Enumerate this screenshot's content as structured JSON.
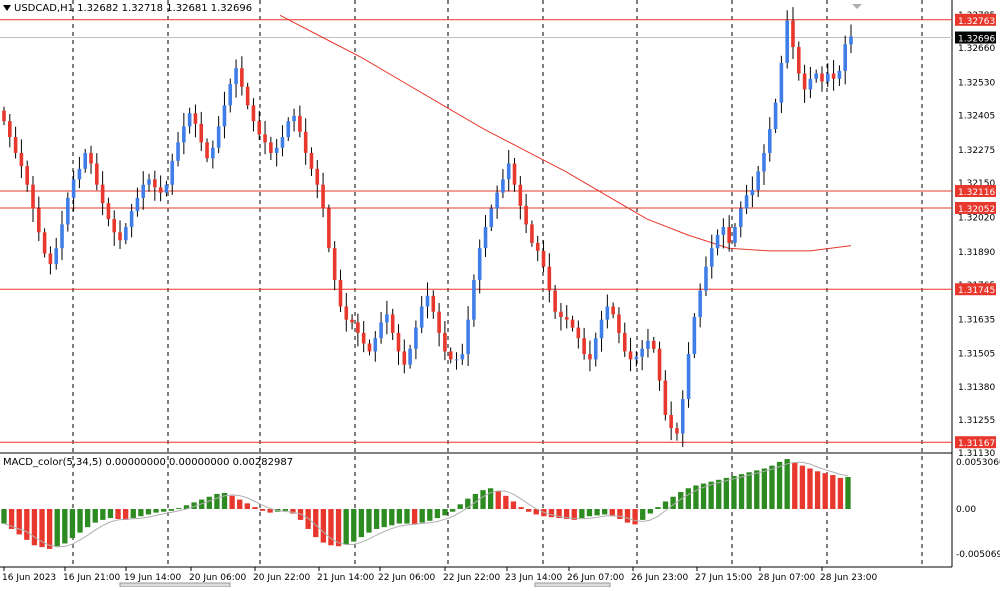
{
  "header": {
    "symbol": "USDCAD,H1",
    "ohlc": "1.32682 1.32718 1.32681 1.32696"
  },
  "macd": {
    "title": "MACD_color(5,34,5) 0.00000000 0.00000000 0.00282987",
    "axis_labels": [
      "0.0053060",
      "0.00",
      "-0.0050693"
    ]
  },
  "colors": {
    "bull": "#3f7ee8",
    "bear": "#e8372c",
    "level_line": "#e8372c",
    "ma_line": "#e8372c",
    "current_price_tag": "#000000",
    "macd_up": "#2e8b22",
    "macd_down": "#e8372c",
    "macd_signal": "#b0b0b0",
    "grid_vertical": "#000000"
  },
  "chart_data": [
    {
      "type": "candlestick",
      "title": "USDCAD,H1",
      "ylim": [
        1.3113,
        1.328
      ],
      "y_ticks": [
        "1.32785",
        "1.32660",
        "1.32530",
        "1.32405",
        "1.32275",
        "1.32150",
        "1.32020",
        "1.31890",
        "1.31765",
        "1.31635",
        "1.31505",
        "1.31380",
        "1.31255",
        "1.31130"
      ],
      "x_labels": [
        "16 Jun 2023",
        "16 Jun 21:00",
        "19 Jun 14:00",
        "20 Jun 06:00",
        "20 Jun 22:00",
        "21 Jun 14:00",
        "22 Jun 06:00",
        "22 Jun 22:00",
        "23 Jun 14:00",
        "26 Jun 07:00",
        "26 Jun 23:00",
        "27 Jun 15:00",
        "28 Jun 07:00",
        "28 Jun 23:00"
      ],
      "vertical_grid_after_labels": [
        "16 Jun 21:00",
        "19 Jun 14:00",
        "20 Jun 06:00",
        "20 Jun 22:00",
        "21 Jun 14:00",
        "22 Jun 06:00",
        "22 Jun 22:00",
        "23 Jun 14:00",
        "26 Jun 07:00",
        "26 Jun 23:00",
        "27 Jun 15:00",
        "28 Jun 07:00",
        "28 Jun 23:00"
      ],
      "horizontal_levels": [
        {
          "value": 1.32763,
          "label": "1.32763"
        },
        {
          "value": 1.32116,
          "label": "1.32116"
        },
        {
          "value": 1.32052,
          "label": "1.32052"
        },
        {
          "value": 1.31745,
          "label": "1.31745"
        },
        {
          "value": 1.31167,
          "label": "1.31167"
        }
      ],
      "current_price": {
        "value": 1.32696,
        "label": "1.32696"
      },
      "close_path": [
        1.3238,
        1.3232,
        1.3226,
        1.3221,
        1.3214,
        1.3205,
        1.3196,
        1.3188,
        1.3184,
        1.319,
        1.3199,
        1.3209,
        1.3216,
        1.322,
        1.3226,
        1.3222,
        1.3214,
        1.3207,
        1.3201,
        1.3196,
        1.3193,
        1.3198,
        1.3204,
        1.3209,
        1.3214,
        1.3216,
        1.3213,
        1.3211,
        1.3214,
        1.3223,
        1.323,
        1.3236,
        1.3241,
        1.3237,
        1.323,
        1.3224,
        1.3228,
        1.3236,
        1.3244,
        1.3252,
        1.3258,
        1.3251,
        1.3244,
        1.3238,
        1.3233,
        1.323,
        1.3226,
        1.3228,
        1.3232,
        1.3238,
        1.324,
        1.3234,
        1.3226,
        1.322,
        1.3214,
        1.3205,
        1.319,
        1.3178,
        1.3168,
        1.3163,
        1.3162,
        1.3158,
        1.3154,
        1.3151,
        1.3156,
        1.3162,
        1.3165,
        1.3158,
        1.3151,
        1.3146,
        1.3152,
        1.316,
        1.3168,
        1.3172,
        1.3166,
        1.3158,
        1.3151,
        1.3148,
        1.3148,
        1.315,
        1.3163,
        1.3178,
        1.319,
        1.3198,
        1.3205,
        1.3211,
        1.3216,
        1.3222,
        1.3214,
        1.3206,
        1.3199,
        1.3192,
        1.3189,
        1.3183,
        1.3174,
        1.3166,
        1.3164,
        1.3163,
        1.316,
        1.3156,
        1.315,
        1.3148,
        1.3156,
        1.3163,
        1.3168,
        1.3165,
        1.3158,
        1.3151,
        1.3148,
        1.3149,
        1.3152,
        1.3155,
        1.3152,
        1.314,
        1.3127,
        1.3122,
        1.312,
        1.3133,
        1.315,
        1.3164,
        1.3174,
        1.3183,
        1.319,
        1.3195,
        1.3198,
        1.3192,
        1.3198,
        1.3205,
        1.321,
        1.3212,
        1.3219,
        1.3226,
        1.3235,
        1.3245,
        1.326,
        1.3276,
        1.3266,
        1.3256,
        1.325,
        1.3254,
        1.3256,
        1.3253,
        1.3256,
        1.3254,
        1.3257,
        1.3267,
        1.327
      ]
    },
    {
      "type": "line",
      "name": "moving-average",
      "values_sampled": [
        1.3278,
        1.327,
        1.3262,
        1.3253,
        1.3244,
        1.3235,
        1.3227,
        1.3219,
        1.321,
        1.3201,
        1.3195,
        1.319,
        1.3189,
        1.3189,
        1.3191
      ]
    },
    {
      "type": "bar",
      "title": "MACD_color(5,34,5)",
      "ylim": [
        -0.0050693,
        0.005306
      ],
      "values": [
        -0.0016,
        -0.0022,
        -0.0028,
        -0.0034,
        -0.004,
        -0.0042,
        -0.0044,
        -0.0041,
        -0.0038,
        -0.0032,
        -0.0026,
        -0.002,
        -0.0015,
        -0.0012,
        -0.001,
        -0.0011,
        -0.0012,
        -0.001,
        -0.0008,
        -0.0006,
        -0.0004,
        -0.0003,
        -0.0002,
        0.0001,
        0.0004,
        0.0007,
        0.001,
        0.0013,
        0.0016,
        0.0017,
        0.0014,
        0.001,
        0.0006,
        0.0002,
        -0.0002,
        -0.0004,
        -0.0003,
        -0.0002,
        -0.0005,
        -0.0012,
        -0.0022,
        -0.0031,
        -0.0037,
        -0.004,
        -0.0041,
        -0.0039,
        -0.0036,
        -0.0031,
        -0.0026,
        -0.0022,
        -0.002,
        -0.0018,
        -0.0016,
        -0.0016,
        -0.0017,
        -0.0015,
        -0.0013,
        -0.001,
        -0.0007,
        -0.0003,
        0.0005,
        0.0011,
        0.0016,
        0.002,
        0.0022,
        0.0019,
        0.0014,
        0.0008,
        0.0002,
        -0.0003,
        -0.0006,
        -0.0008,
        -0.0009,
        -0.001,
        -0.0011,
        -0.0012,
        -0.001,
        -0.0008,
        -0.0007,
        -0.0006,
        -0.0008,
        -0.0011,
        -0.0015,
        -0.0017,
        -0.0012,
        -0.0005,
        0.0002,
        0.0008,
        0.0013,
        0.0018,
        0.0022,
        0.0025,
        0.0027,
        0.0029,
        0.0031,
        0.0033,
        0.0035,
        0.0037,
        0.0039,
        0.0041,
        0.0043,
        0.0046,
        0.005,
        0.0053,
        0.0049,
        0.0046,
        0.0043,
        0.004,
        0.0038,
        0.0036,
        0.0033,
        0.0034
      ]
    }
  ]
}
